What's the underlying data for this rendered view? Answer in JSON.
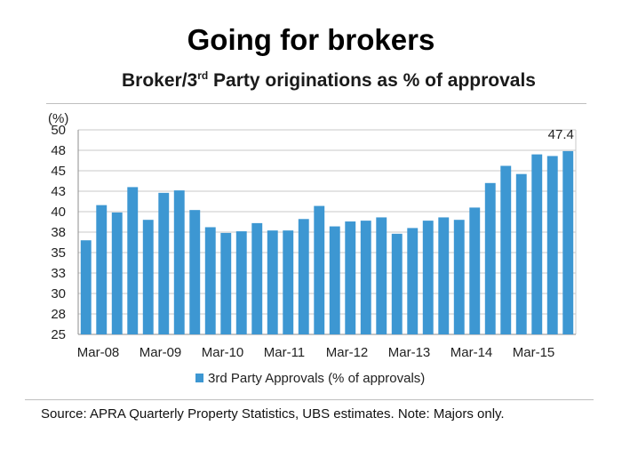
{
  "title": "Going for brokers",
  "subtitle_pre": "Broker/3",
  "subtitle_sup": "rd",
  "subtitle_post": " Party originations as % of approvals",
  "source": "Source:  APRA Quarterly Property Statistics, UBS estimates. Note: Majors only.",
  "chart_data": {
    "type": "bar",
    "ylabel": "(%)",
    "ylim": [
      25,
      50
    ],
    "yticks": [
      "25",
      "28",
      "30",
      "33",
      "35",
      "38",
      "40",
      "43",
      "45",
      "48",
      "50"
    ],
    "xtick_labels": [
      "Mar-08",
      "Mar-09",
      "Mar-10",
      "Mar-11",
      "Mar-12",
      "Mar-13",
      "Mar-14",
      "Mar-15"
    ],
    "series": [
      {
        "name": "3rd Party Approvals (% of approvals)",
        "color": "#3d97d2",
        "values": [
          36.5,
          40.8,
          39.9,
          43.0,
          39.0,
          42.3,
          42.6,
          40.2,
          38.1,
          37.4,
          37.6,
          38.6,
          37.7,
          37.7,
          39.1,
          40.7,
          38.2,
          38.8,
          38.9,
          39.3,
          37.3,
          38.0,
          38.9,
          39.3,
          39.0,
          40.5,
          43.5,
          45.6,
          44.6,
          47.0,
          46.8,
          47.4
        ]
      }
    ],
    "annotation": "47.4",
    "grid": true,
    "legend_position": "bottom"
  }
}
